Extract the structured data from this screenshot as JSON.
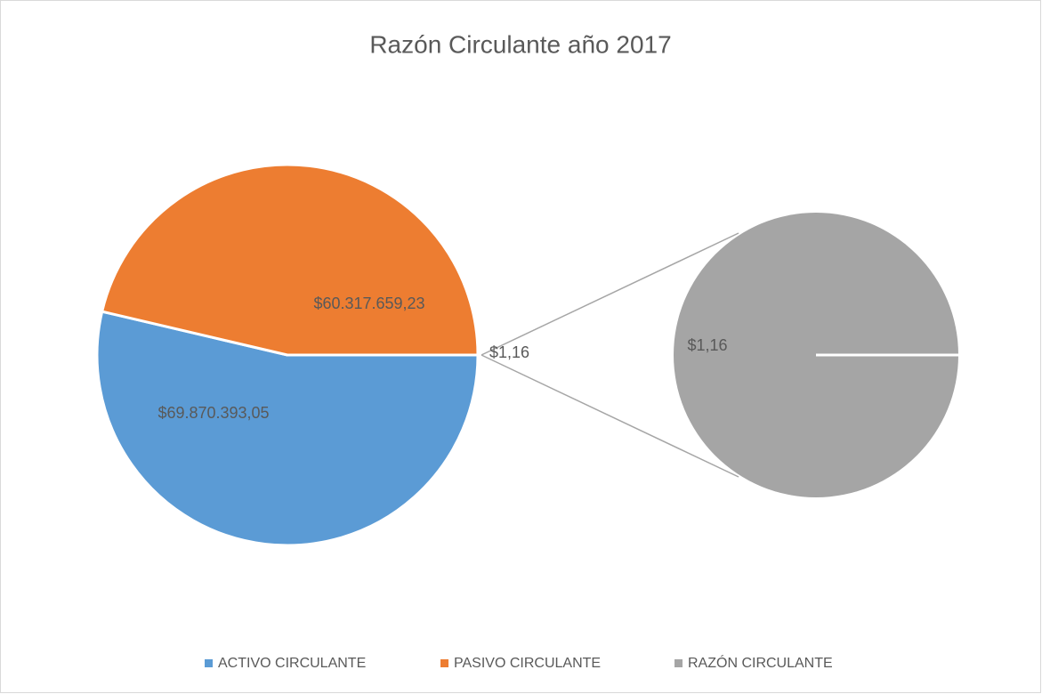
{
  "chart_data": {
    "type": "pie-of-pie",
    "title": "Razón Circulante año 2017",
    "categories": [
      "ACTIVO CIRCULANTE",
      "PASIVO CIRCULANTE",
      "RAZÓN CIRCULANTE"
    ],
    "values": [
      69870393.05,
      60317659.23,
      1.16
    ],
    "value_labels": [
      "$69.870.393,05",
      "$60.317.659,23",
      "$1,16"
    ],
    "colors": [
      "#5b9bd5",
      "#ed7d31",
      "#a5a5a5"
    ],
    "legend": "bottom"
  }
}
